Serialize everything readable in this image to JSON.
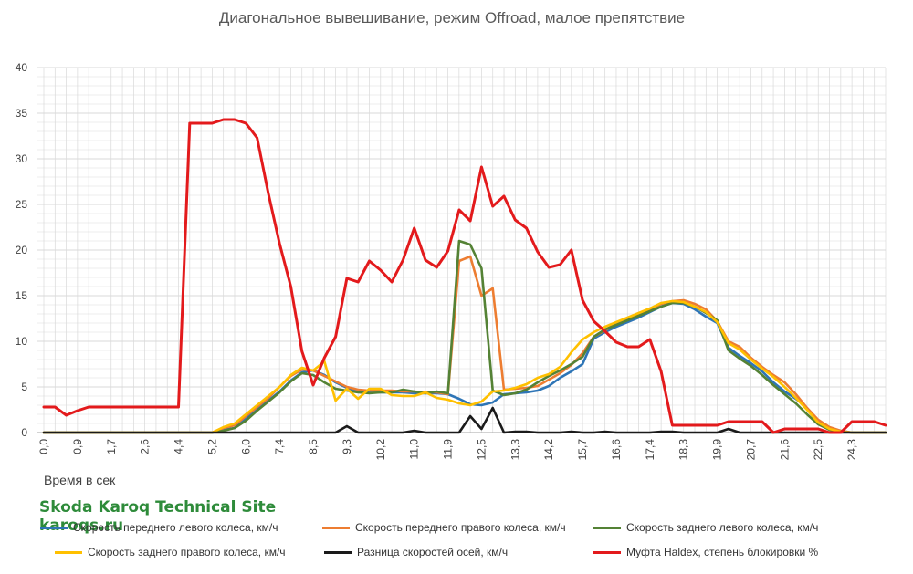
{
  "colors": {
    "front_left": "#2e75b6",
    "front_right": "#ed7d31",
    "rear_left": "#548235",
    "rear_right": "#ffc000",
    "axle_diff": "#1a1a1a",
    "haldex": "#e31a1c",
    "grid": "#d9d9d9",
    "watermark": "#2e8b3a"
  },
  "watermark": {
    "line1": "Skoda Karoq Technical Site",
    "line2": "karoqs.ru"
  },
  "chart_data": {
    "type": "line",
    "title": "Диагональное вывешивание, режим Offroad, малое препятствие",
    "xlabel": "Время в сек",
    "ylabel": "",
    "ylim": [
      0,
      40
    ],
    "yticks": [
      0,
      5,
      10,
      15,
      20,
      25,
      30,
      35,
      40
    ],
    "grid": true,
    "legend_position": "bottom",
    "x_tick_labels": [
      "0,0",
      "0,9",
      "1,7",
      "2,6",
      "4,4",
      "5,2",
      "6,0",
      "7,4",
      "8,5",
      "9,3",
      "10,2",
      "11,0",
      "11,9",
      "12,5",
      "13,3",
      "14,2",
      "15,7",
      "16,6",
      "17,4",
      "18,3",
      "19,9",
      "20,7",
      "21,6",
      "22,5",
      "24,3"
    ],
    "series": [
      {
        "name": "Скорость переднего левого колеса, км/ч",
        "values": [
          0,
          0,
          0,
          0,
          0,
          0,
          0,
          0,
          0,
          0,
          0,
          0,
          0,
          0,
          0,
          0,
          0.3,
          0.5,
          1.5,
          2.5,
          3.5,
          4.5,
          5.7,
          6.6,
          6.8,
          6.3,
          5.5,
          4.9,
          4.6,
          4.4,
          4.4,
          4.4,
          4.4,
          4.3,
          4.3,
          4.3,
          4.2,
          3.7,
          3.1,
          3.0,
          3.3,
          4.2,
          4.3,
          4.4,
          4.6,
          5.1,
          6.0,
          6.7,
          7.5,
          10.3,
          11.0,
          11.6,
          12.1,
          12.6,
          13.2,
          13.8,
          14.2,
          14.1,
          13.5,
          12.7,
          12.0,
          9.3,
          8.4,
          7.6,
          6.7,
          5.5,
          4.5,
          3.7,
          2.7,
          1.3,
          0.5,
          0.2,
          0,
          0,
          0,
          0
        ]
      },
      {
        "name": "Скорость переднего правого колеса, км/ч",
        "values": [
          0,
          0,
          0,
          0,
          0,
          0,
          0,
          0,
          0,
          0,
          0,
          0,
          0,
          0,
          0,
          0,
          0.5,
          0.8,
          1.8,
          2.8,
          3.8,
          5.0,
          6.2,
          6.9,
          6.8,
          6.2,
          5.6,
          5.0,
          4.7,
          4.6,
          4.6,
          4.6,
          4.5,
          4.5,
          4.4,
          4.4,
          4.2,
          18.8,
          19.3,
          15.0,
          15.8,
          4.7,
          4.8,
          4.9,
          5.1,
          5.8,
          6.5,
          7.4,
          8.7,
          10.5,
          11.2,
          12.0,
          12.5,
          13.0,
          13.5,
          14.1,
          14.4,
          14.5,
          14.1,
          13.5,
          12.2,
          10.0,
          9.4,
          8.2,
          7.2,
          6.3,
          5.5,
          4.2,
          2.7,
          1.4,
          0.6,
          0.2,
          0,
          0,
          0,
          0
        ]
      },
      {
        "name": "Скорость заднего левого колеса, км/ч",
        "values": [
          0,
          0,
          0,
          0,
          0,
          0,
          0,
          0,
          0,
          0,
          0,
          0,
          0,
          0,
          0,
          0,
          0.2,
          0.5,
          1.3,
          2.4,
          3.4,
          4.4,
          5.6,
          6.5,
          6.3,
          5.5,
          4.8,
          4.6,
          4.4,
          4.3,
          4.4,
          4.4,
          4.7,
          4.5,
          4.3,
          4.5,
          4.3,
          21.0,
          20.6,
          18.0,
          4.6,
          4.1,
          4.3,
          4.7,
          5.5,
          6.2,
          6.8,
          7.5,
          8.3,
          10.5,
          11.3,
          11.8,
          12.3,
          12.8,
          13.3,
          13.8,
          14.2,
          14.2,
          13.8,
          13.1,
          12.3,
          9.0,
          8.1,
          7.3,
          6.3,
          5.2,
          4.2,
          3.2,
          2.0,
          0.9,
          0.3,
          0.1,
          0,
          0,
          0,
          0
        ]
      },
      {
        "name": "Скорость заднего правого колеса, км/ч",
        "values": [
          0,
          0,
          0,
          0,
          0,
          0,
          0,
          0,
          0,
          0,
          0,
          0,
          0,
          0,
          0,
          0,
          0.6,
          1.0,
          2.0,
          3.0,
          4.0,
          5.0,
          6.3,
          7.1,
          6.8,
          7.8,
          3.5,
          4.8,
          3.7,
          4.8,
          4.8,
          4.1,
          4.0,
          4.0,
          4.4,
          3.8,
          3.6,
          3.2,
          3.0,
          3.4,
          4.5,
          4.6,
          4.9,
          5.3,
          6.0,
          6.4,
          7.2,
          8.8,
          10.2,
          11.0,
          11.6,
          12.1,
          12.6,
          13.1,
          13.6,
          14.2,
          14.4,
          14.3,
          13.8,
          13.2,
          12.1,
          9.8,
          9.1,
          8.0,
          7.0,
          6.1,
          5.0,
          3.8,
          2.5,
          1.1,
          0.4,
          0.1,
          0,
          0,
          0,
          0
        ]
      },
      {
        "name": "Разница скоростей осей, км/ч",
        "values": [
          0,
          0,
          0,
          0,
          0,
          0,
          0,
          0,
          0,
          0,
          0,
          0,
          0,
          0,
          0,
          0,
          0,
          0,
          0,
          0,
          0,
          0,
          0,
          0,
          0,
          0,
          0,
          0.7,
          0,
          0,
          0,
          0,
          0,
          0.2,
          0,
          0,
          0,
          0,
          1.8,
          0.4,
          2.7,
          0,
          0.1,
          0.1,
          0,
          0,
          0,
          0.1,
          0,
          0,
          0.1,
          0,
          0,
          0,
          0,
          0.1,
          0.1,
          0,
          0,
          0,
          0,
          0.4,
          0,
          0,
          0,
          0,
          0,
          0,
          0,
          0,
          0,
          0,
          0,
          0,
          0,
          0
        ]
      },
      {
        "name": "Муфта Haldex, степень блокировки %",
        "values": [
          2.8,
          2.8,
          1.9,
          2.4,
          2.8,
          2.8,
          2.8,
          2.8,
          2.8,
          2.8,
          2.8,
          2.8,
          2.8,
          33.9,
          33.9,
          33.9,
          34.3,
          34.3,
          33.9,
          32.3,
          26.2,
          20.7,
          16.0,
          8.9,
          5.2,
          8.2,
          10.5,
          16.9,
          16.5,
          18.8,
          17.8,
          16.5,
          18.9,
          22.4,
          18.9,
          18.1,
          19.9,
          24.4,
          23.2,
          29.1,
          24.8,
          25.9,
          23.3,
          22.4,
          19.8,
          18.1,
          18.4,
          20.0,
          14.5,
          12.2,
          11.1,
          9.9,
          9.4,
          9.4,
          10.2,
          6.7,
          0.8,
          0.8,
          0.8,
          0.8,
          0.8,
          1.2,
          1.2,
          1.2,
          1.2,
          0,
          0.4,
          0.4,
          0.4,
          0.4,
          0,
          0,
          1.2,
          1.2,
          1.2,
          0.8
        ]
      }
    ]
  }
}
